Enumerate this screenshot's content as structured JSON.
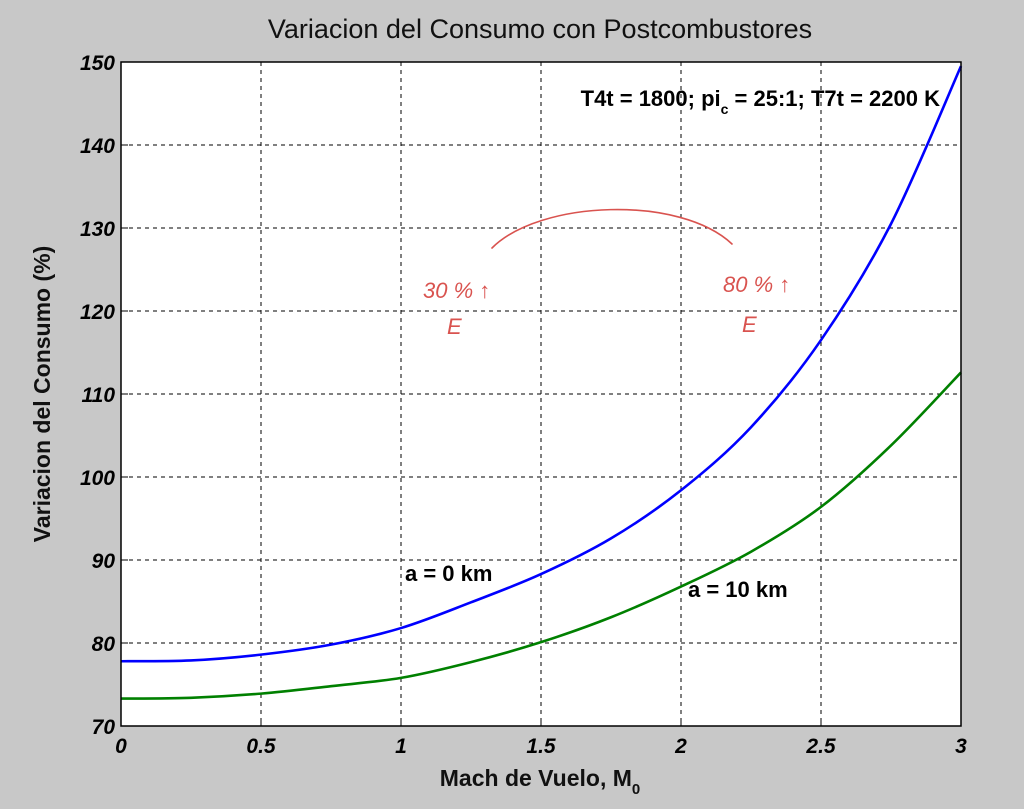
{
  "chart_data": {
    "type": "line",
    "title": "Variacion del Consumo con Postcombustores",
    "xlabel": "Mach de Vuelo, M",
    "xlabel_sub": "0",
    "ylabel": "Variacion del Consumo (%)",
    "xlim": [
      0,
      3
    ],
    "ylim": [
      70,
      150
    ],
    "xticks": [
      0,
      0.5,
      1,
      1.5,
      2,
      2.5,
      3
    ],
    "xtick_labels": [
      "0",
      "0.5",
      "1",
      "1.5",
      "2",
      "2.5",
      "3"
    ],
    "yticks": [
      70,
      80,
      90,
      100,
      110,
      120,
      130,
      140,
      150
    ],
    "ytick_labels": [
      "70",
      "80",
      "90",
      "100",
      "110",
      "120",
      "130",
      "140",
      "150"
    ],
    "grid": true,
    "params_annotation": {
      "part1": "T4t = 1800; pi",
      "sub": "c",
      "part2": " = 25:1; T7t = 2200 K"
    },
    "series": [
      {
        "name": "a = 0 km",
        "color": "#0000ff",
        "x": [
          0,
          0.25,
          0.5,
          0.75,
          1.0,
          1.25,
          1.5,
          1.75,
          2.0,
          2.25,
          2.5,
          2.75,
          3.0
        ],
        "y": [
          77.8,
          77.9,
          78.6,
          79.8,
          81.8,
          84.9,
          88.3,
          92.6,
          98.4,
          106.0,
          116.5,
          130.5,
          149.5
        ]
      },
      {
        "name": "a = 10 km",
        "color": "#008000",
        "x": [
          0,
          0.25,
          0.5,
          0.75,
          1.0,
          1.25,
          1.5,
          1.75,
          2.0,
          2.25,
          2.5,
          2.75,
          3.0
        ],
        "y": [
          73.3,
          73.4,
          73.9,
          74.8,
          75.8,
          77.7,
          80.1,
          83.1,
          86.8,
          91.0,
          96.4,
          103.8,
          112.6
        ]
      }
    ],
    "handwritten_notes": [
      {
        "line1": "30 % ↑",
        "line2": "E"
      },
      {
        "line1": "80 % ↑",
        "line2": "E"
      }
    ]
  }
}
